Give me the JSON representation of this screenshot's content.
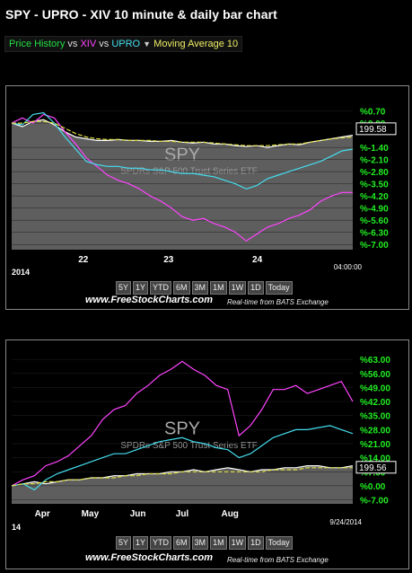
{
  "header": {
    "title": "SPY - UPRO - XIV 10 minute & daily bar chart"
  },
  "legend": {
    "price_history": "Price History",
    "vs1": "vs",
    "xiv": "XIV",
    "vs2": "vs",
    "upro": "UPRO",
    "dropdown_icon": "triangle-down-icon",
    "moving_average": "Moving Average 10"
  },
  "colors": {
    "spy": "#ffffff",
    "xiv": "#ff44ff",
    "upro": "#44ddee",
    "ma": "#dddd44",
    "pos_label": "#22ee22",
    "bg": "#000000"
  },
  "timeframes": [
    "5Y",
    "1Y",
    "YTD",
    "6M",
    "3M",
    "1M",
    "1W",
    "1D",
    "Today"
  ],
  "footer": {
    "site": "www.FreeStockCharts.com",
    "realtime": "Real-time from BATS Exchange"
  },
  "chart_data": [
    {
      "type": "line",
      "watermark": "SPY",
      "watermark_sub": "SPDRs S&P 500 Trust Series ETF",
      "y_ticks": [
        "%0.70",
        "%0.00",
        "%-1.40",
        "%-2.10",
        "%-2.80",
        "%-3.50",
        "%-4.20",
        "%-4.90",
        "%-5.60",
        "%-6.30",
        "%-7.00"
      ],
      "y_tick_values": [
        0.7,
        0.0,
        -1.4,
        -2.1,
        -2.8,
        -3.5,
        -4.2,
        -4.9,
        -5.6,
        -6.3,
        -7.0
      ],
      "ylim": [
        -7.3,
        1.3
      ],
      "price_box": "199.58",
      "price_box_value": -0.35,
      "x_ticks": [
        "22",
        "23",
        "24"
      ],
      "x_tick_positions": [
        0.21,
        0.46,
        0.72
      ],
      "x_left_label": "2014",
      "x_right_label": "04:00:00",
      "series": [
        {
          "key": "spy",
          "values": [
            0.0,
            -0.2,
            0.1,
            0.2,
            -0.1,
            -0.5,
            -0.8,
            -0.9,
            -1.0,
            -1.0,
            -0.95,
            -1.0,
            -1.0,
            -1.05,
            -1.05,
            -1.0,
            -1.1,
            -1.15,
            -1.1,
            -1.2,
            -1.2,
            -1.3,
            -1.35,
            -1.3,
            -1.4,
            -1.3,
            -1.2,
            -1.25,
            -1.1,
            -1.0,
            -0.9,
            -0.8,
            -0.7
          ]
        },
        {
          "key": "xiv",
          "values": [
            0.0,
            0.3,
            0.0,
            0.5,
            0.3,
            -0.5,
            -1.2,
            -2.0,
            -2.5,
            -3.0,
            -3.3,
            -3.5,
            -3.8,
            -4.2,
            -4.5,
            -4.9,
            -5.4,
            -5.6,
            -5.5,
            -5.8,
            -6.0,
            -6.3,
            -6.8,
            -6.4,
            -6.0,
            -5.8,
            -5.5,
            -5.3,
            -5.0,
            -4.5,
            -4.2,
            -4.0,
            -4.0
          ]
        },
        {
          "key": "upro",
          "values": [
            0.0,
            -0.1,
            0.5,
            0.6,
            0.0,
            -0.8,
            -1.5,
            -2.2,
            -2.4,
            -2.5,
            -2.5,
            -2.6,
            -2.6,
            -2.7,
            -2.7,
            -2.8,
            -2.9,
            -2.9,
            -3.0,
            -3.1,
            -3.3,
            -3.5,
            -3.8,
            -3.6,
            -3.2,
            -3.0,
            -2.8,
            -2.6,
            -2.4,
            -2.2,
            -1.9,
            -1.6,
            -1.5
          ]
        },
        {
          "key": "ma",
          "values": [
            0.0,
            0.0,
            0.1,
            0.1,
            0.0,
            -0.3,
            -0.6,
            -0.8,
            -0.9,
            -0.95,
            -0.95,
            -1.0,
            -1.0,
            -1.0,
            -1.05,
            -1.05,
            -1.1,
            -1.1,
            -1.1,
            -1.15,
            -1.2,
            -1.25,
            -1.3,
            -1.3,
            -1.3,
            -1.25,
            -1.2,
            -1.2,
            -1.1,
            -1.0,
            -0.9,
            -0.85,
            -0.8
          ]
        }
      ]
    },
    {
      "type": "line",
      "watermark": "SPY",
      "watermark_sub": "SPDRs S&P 500 Trust Series ETF",
      "y_ticks": [
        "%63.00",
        "%56.00",
        "%49.00",
        "%42.00",
        "%35.00",
        "%28.00",
        "%21.00",
        "%14.00",
        "%7.00",
        "%0.00",
        "%-7.00"
      ],
      "y_tick_values": [
        63,
        56,
        49,
        42,
        35,
        28,
        21,
        14,
        7,
        0,
        -7
      ],
      "ylim": [
        -9,
        68
      ],
      "price_box": "199.56",
      "price_box_value": 9.0,
      "x_ticks": [
        "Apr",
        "May",
        "Jun",
        "Jul",
        "Aug"
      ],
      "x_tick_positions": [
        0.09,
        0.23,
        0.37,
        0.5,
        0.64
      ],
      "x_left_label": "14",
      "x_right_label": "9/24/2014",
      "series": [
        {
          "key": "spy",
          "values": [
            0,
            1,
            2,
            1,
            2,
            3,
            3,
            4,
            4,
            5,
            5,
            6,
            6,
            6,
            7,
            7,
            8,
            7,
            8,
            9,
            8,
            7,
            8,
            8,
            9,
            9,
            10,
            10,
            9,
            9,
            10
          ]
        },
        {
          "key": "xiv",
          "values": [
            0,
            3,
            5,
            10,
            12,
            15,
            20,
            25,
            33,
            38,
            40,
            46,
            50,
            55,
            58,
            62,
            58,
            55,
            50,
            48,
            25,
            30,
            38,
            48,
            48,
            50,
            46,
            48,
            50,
            52,
            42
          ]
        },
        {
          "key": "upro",
          "values": [
            0,
            1,
            -2,
            3,
            6,
            8,
            10,
            12,
            14,
            16,
            16,
            18,
            20,
            22,
            23,
            24,
            22,
            21,
            19,
            18,
            14,
            16,
            20,
            24,
            26,
            28,
            28,
            29,
            30,
            28,
            26
          ]
        },
        {
          "key": "ma",
          "values": [
            0,
            1,
            1,
            2,
            2,
            3,
            3,
            4,
            4,
            4,
            5,
            5,
            6,
            6,
            6,
            7,
            7,
            7,
            7,
            7,
            7,
            7,
            7,
            8,
            8,
            8,
            9,
            9,
            9,
            9,
            9
          ]
        }
      ]
    }
  ]
}
